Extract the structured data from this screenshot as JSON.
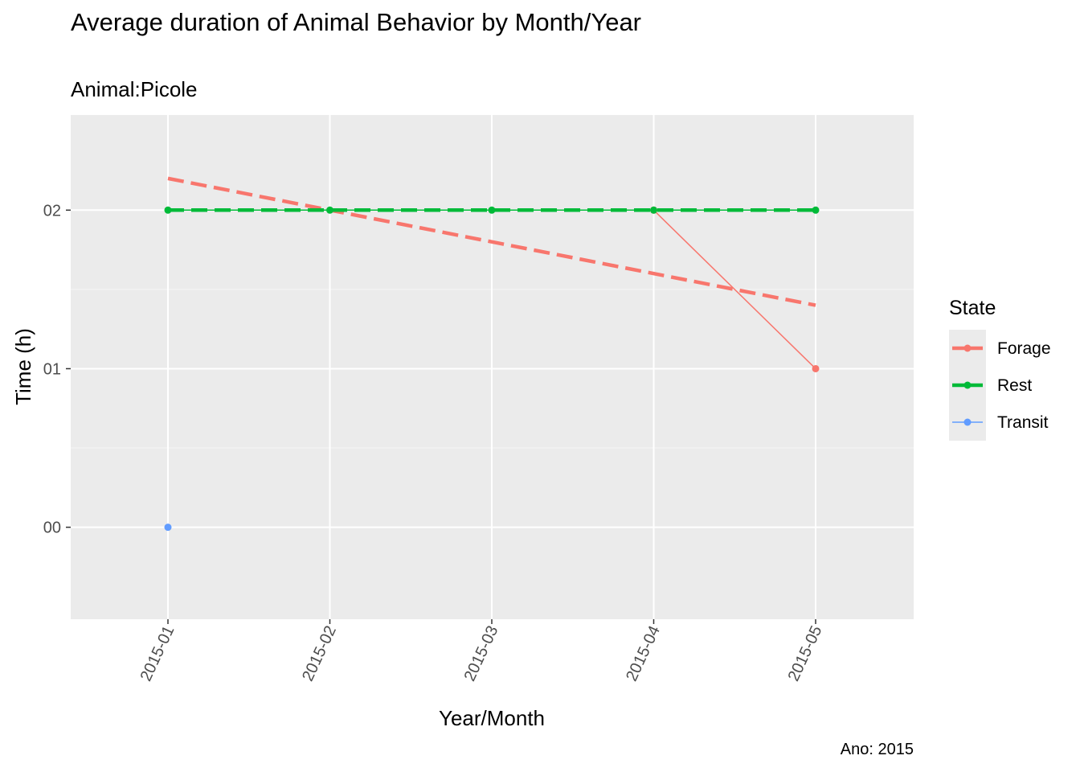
{
  "chart_data": {
    "type": "line",
    "title": "Average duration of Animal Behavior by Month/Year",
    "subtitle": "Animal:Picole",
    "caption": "Ano: 2015",
    "xlabel": "Year/Month",
    "ylabel": "Time (h)",
    "categories": [
      "2015-01",
      "2015-02",
      "2015-03",
      "2015-04",
      "2015-05"
    ],
    "y_ticks": [
      {
        "value": 0,
        "label": "00"
      },
      {
        "value": 1,
        "label": "01"
      },
      {
        "value": 2,
        "label": "02"
      }
    ],
    "ylim": [
      -0.58,
      2.6
    ],
    "grid": true,
    "legend": {
      "title": "State",
      "position": "right"
    },
    "series": [
      {
        "name": "Forage",
        "color": "#F8766D",
        "x": [
          "2015-04",
          "2015-05"
        ],
        "values": [
          2,
          1
        ],
        "trend": {
          "style": "dashed",
          "x": [
            "2015-01",
            "2015-05"
          ],
          "values": [
            2.2,
            1.4
          ]
        }
      },
      {
        "name": "Rest",
        "color": "#00BA38",
        "x": [
          "2015-01",
          "2015-02",
          "2015-03",
          "2015-04",
          "2015-05"
        ],
        "values": [
          2,
          2,
          2,
          2,
          2
        ],
        "trend": {
          "style": "dashed",
          "x": [
            "2015-01",
            "2015-05"
          ],
          "values": [
            2,
            2
          ]
        }
      },
      {
        "name": "Transit",
        "color": "#619CFF",
        "x": [
          "2015-01"
        ],
        "values": [
          0
        ]
      }
    ]
  }
}
